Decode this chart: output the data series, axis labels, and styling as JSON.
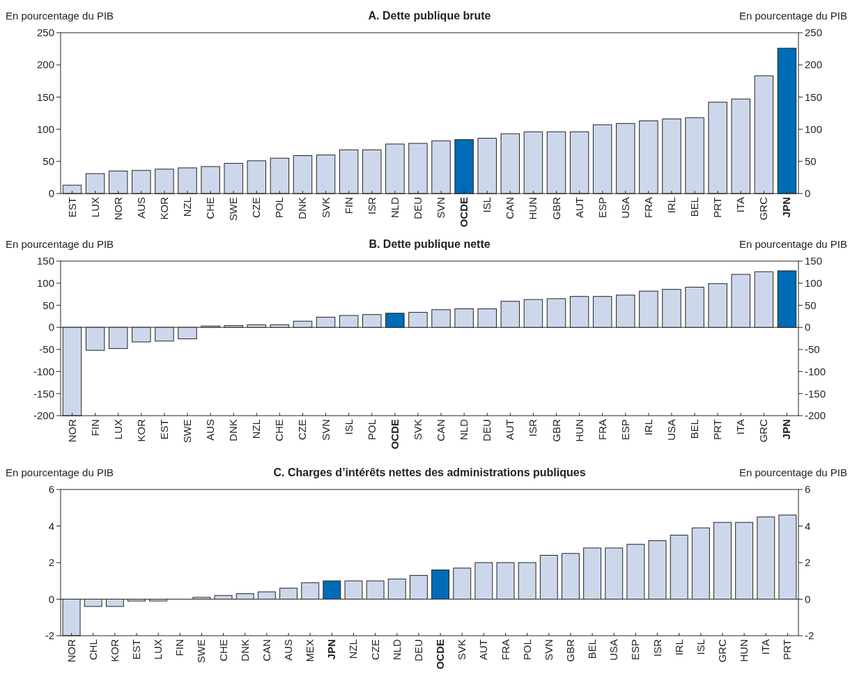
{
  "chart_data": [
    {
      "type": "bar",
      "title": "A. Dette publique brute",
      "ylabel": "En pourcentage du PIB",
      "y2label": "En pourcentage du PIB",
      "categories": [
        "EST",
        "LUX",
        "NOR",
        "AUS",
        "KOR",
        "NZL",
        "CHE",
        "SWE",
        "CZE",
        "POL",
        "DNK",
        "SVK",
        "FIN",
        "ISR",
        "NLD",
        "DEU",
        "SVN",
        "OCDE",
        "ISL",
        "CAN",
        "HUN",
        "GBR",
        "AUT",
        "ESP",
        "USA",
        "FRA",
        "IRL",
        "BEL",
        "PRT",
        "ITA",
        "GRC",
        "JPN"
      ],
      "values": [
        13,
        31,
        35,
        36,
        38,
        40,
        42,
        47,
        51,
        55,
        59,
        60,
        68,
        68,
        77,
        78,
        82,
        84,
        86,
        93,
        96,
        96,
        96,
        107,
        109,
        113,
        116,
        118,
        142,
        147,
        183,
        226
      ],
      "colors": [
        "#cdd7ec",
        "#cdd7ec",
        "#cdd7ec",
        "#cdd7ec",
        "#cdd7ec",
        "#cdd7ec",
        "#cdd7ec",
        "#cdd7ec",
        "#cdd7ec",
        "#cdd7ec",
        "#cdd7ec",
        "#cdd7ec",
        "#cdd7ec",
        "#cdd7ec",
        "#cdd7ec",
        "#cdd7ec",
        "#cdd7ec",
        "#006bb6",
        "#cdd7ec",
        "#cdd7ec",
        "#cdd7ec",
        "#cdd7ec",
        "#cdd7ec",
        "#cdd7ec",
        "#cdd7ec",
        "#cdd7ec",
        "#cdd7ec",
        "#cdd7ec",
        "#cdd7ec",
        "#cdd7ec",
        "#cdd7ec",
        "#006bb6"
      ],
      "ylim": [
        0,
        250
      ],
      "yticks": [
        0,
        50,
        100,
        150,
        200,
        250
      ],
      "y2lim": [
        0,
        250
      ],
      "y2ticks": [
        0,
        50,
        100,
        150,
        200,
        250
      ]
    },
    {
      "type": "bar",
      "title": "B. Dette publique nette",
      "ylabel": "En pourcentage du PIB",
      "y2label": "En pourcentage du PIB",
      "categories": [
        "NOR",
        "FIN",
        "LUX",
        "KOR",
        "EST",
        "SWE",
        "AUS",
        "DNK",
        "NZL",
        "CHE",
        "CZE",
        "SVN",
        "ISL",
        "POL",
        "OCDE",
        "SVK",
        "CAN",
        "NLD",
        "DEU",
        "AUT",
        "ISR",
        "GBR",
        "HUN",
        "FRA",
        "ESP",
        "IRL",
        "USA",
        "BEL",
        "PRT",
        "ITA",
        "GRC",
        "JPN"
      ],
      "values": [
        -200,
        -52,
        -48,
        -33,
        -31,
        -26,
        3,
        4,
        6,
        6,
        14,
        23,
        27,
        29,
        32,
        34,
        40,
        42,
        42,
        59,
        63,
        65,
        70,
        70,
        73,
        82,
        86,
        91,
        99,
        120,
        126,
        128
      ],
      "colors": [
        "#cdd7ec",
        "#cdd7ec",
        "#cdd7ec",
        "#cdd7ec",
        "#cdd7ec",
        "#cdd7ec",
        "#cdd7ec",
        "#cdd7ec",
        "#cdd7ec",
        "#cdd7ec",
        "#cdd7ec",
        "#cdd7ec",
        "#cdd7ec",
        "#cdd7ec",
        "#006bb6",
        "#cdd7ec",
        "#cdd7ec",
        "#cdd7ec",
        "#cdd7ec",
        "#cdd7ec",
        "#cdd7ec",
        "#cdd7ec",
        "#cdd7ec",
        "#cdd7ec",
        "#cdd7ec",
        "#cdd7ec",
        "#cdd7ec",
        "#cdd7ec",
        "#cdd7ec",
        "#cdd7ec",
        "#cdd7ec",
        "#006bb6"
      ],
      "ylim": [
        -200,
        150
      ],
      "yticks": [
        -200,
        -150,
        -100,
        -50,
        0,
        50,
        100,
        150
      ],
      "y2lim": [
        -200,
        150
      ],
      "y2ticks": [
        -200,
        -150,
        -100,
        -50,
        0,
        50,
        100,
        150
      ],
      "ref_lines": [
        {
          "axis": "y",
          "value": 0
        }
      ]
    },
    {
      "type": "bar",
      "title": "C. Charges d’intérêts nettes des administrations publiques",
      "ylabel": "En pourcentage du PIB",
      "y2label": "En pourcentage du PIB",
      "categories": [
        "NOR",
        "CHL",
        "KOR",
        "EST",
        "LUX",
        "FIN",
        "SWE",
        "CHE",
        "DNK",
        "CAN",
        "AUS",
        "MEX",
        "JPN",
        "NZL",
        "CZE",
        "NLD",
        "DEU",
        "OCDE",
        "SVK",
        "AUT",
        "FRA",
        "POL",
        "SVN",
        "GBR",
        "BEL",
        "USA",
        "ESP",
        "ISR",
        "IRL",
        "ISL",
        "GRC",
        "HUN",
        "ITA",
        "PRT"
      ],
      "values": [
        -2,
        -0.4,
        -0.4,
        -0.1,
        -0.1,
        0,
        0.1,
        0.2,
        0.3,
        0.4,
        0.6,
        0.9,
        1.0,
        1.0,
        1.0,
        1.1,
        1.3,
        1.6,
        1.7,
        2.0,
        2.0,
        2.0,
        2.4,
        2.5,
        2.8,
        2.8,
        3.0,
        3.2,
        3.5,
        3.9,
        4.2,
        4.2,
        4.5,
        4.6
      ],
      "colors": [
        "#cdd7ec",
        "#cdd7ec",
        "#cdd7ec",
        "#cdd7ec",
        "#cdd7ec",
        "#cdd7ec",
        "#cdd7ec",
        "#cdd7ec",
        "#cdd7ec",
        "#cdd7ec",
        "#cdd7ec",
        "#cdd7ec",
        "#006bb6",
        "#cdd7ec",
        "#cdd7ec",
        "#cdd7ec",
        "#cdd7ec",
        "#006bb6",
        "#cdd7ec",
        "#cdd7ec",
        "#cdd7ec",
        "#cdd7ec",
        "#cdd7ec",
        "#cdd7ec",
        "#cdd7ec",
        "#cdd7ec",
        "#cdd7ec",
        "#cdd7ec",
        "#cdd7ec",
        "#cdd7ec",
        "#cdd7ec",
        "#cdd7ec",
        "#cdd7ec",
        "#cdd7ec"
      ],
      "ylim": [
        -2,
        6
      ],
      "yticks": [
        -2,
        0,
        2,
        4,
        6
      ],
      "y2lim": [
        -2,
        6
      ],
      "y2ticks": [
        -2,
        0,
        2,
        4,
        6
      ],
      "ref_lines": [
        {
          "axis": "y",
          "value": 0
        }
      ]
    }
  ]
}
